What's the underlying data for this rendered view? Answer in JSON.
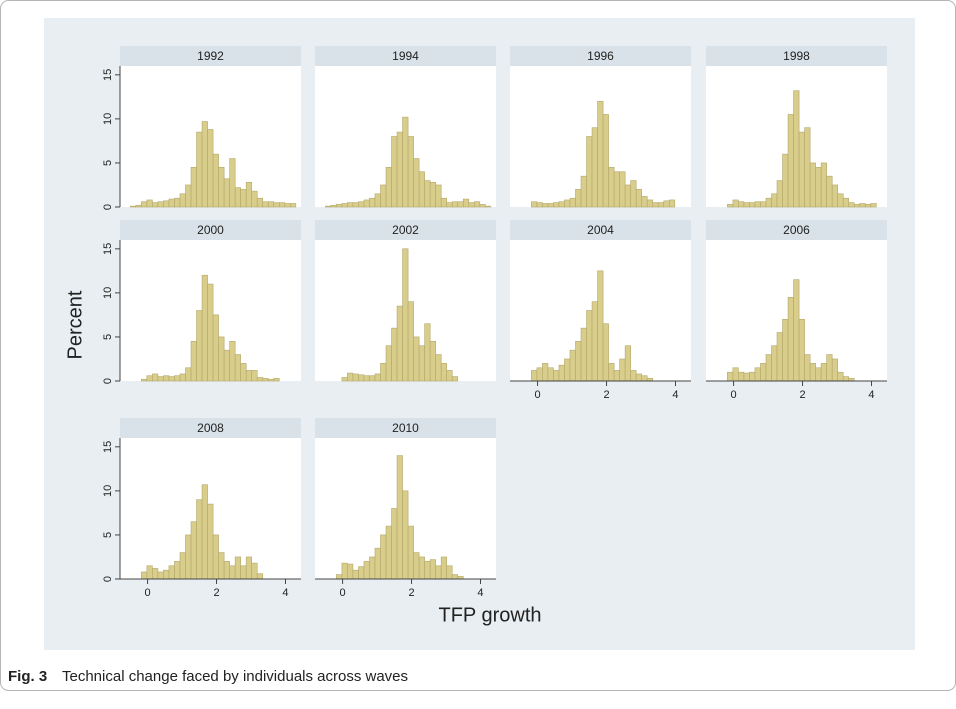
{
  "y_label": "Percent",
  "x_label": "TFP growth",
  "caption_label": "Fig. 3",
  "caption_text": "Technical change faced by individuals across waves",
  "chart_data": [
    {
      "type": "histogram",
      "title": "1992",
      "color": "#d9cd8c",
      "xlim": [
        -0.8,
        4.45
      ],
      "ylim": [
        0,
        16
      ],
      "yticks": [
        0,
        5,
        10,
        15
      ],
      "bins": [
        -0.5,
        -0.34,
        -0.18,
        -0.02,
        0.14,
        0.3,
        0.46,
        0.62,
        0.78,
        0.94,
        1.1,
        1.26,
        1.42,
        1.58,
        1.74,
        1.9,
        2.06,
        2.22,
        2.38,
        2.54,
        2.7,
        2.86,
        3.02,
        3.18,
        3.34,
        3.5,
        3.66,
        3.82,
        3.98,
        4.14,
        4.3
      ],
      "values": [
        0.1,
        0.2,
        0.6,
        0.8,
        0.5,
        0.6,
        0.7,
        0.9,
        1,
        1.5,
        2.5,
        4.5,
        8.5,
        9.7,
        8.8,
        6,
        4.5,
        3.2,
        5.5,
        2.2,
        2,
        2.8,
        1.8,
        1,
        0.6,
        0.6,
        0.5,
        0.5,
        0.4,
        0.4
      ]
    },
    {
      "type": "histogram",
      "title": "1994",
      "color": "#d9cd8c",
      "xlim": [
        -0.8,
        4.45
      ],
      "ylim": [
        0,
        16
      ],
      "bins": [
        -0.5,
        -0.34,
        -0.18,
        -0.02,
        0.14,
        0.3,
        0.46,
        0.62,
        0.78,
        0.94,
        1.1,
        1.26,
        1.42,
        1.58,
        1.74,
        1.9,
        2.06,
        2.22,
        2.38,
        2.54,
        2.7,
        2.86,
        3.02,
        3.18,
        3.34,
        3.5,
        3.66,
        3.82,
        3.98,
        4.14,
        4.3
      ],
      "values": [
        0.1,
        0.2,
        0.3,
        0.4,
        0.5,
        0.5,
        0.6,
        0.8,
        1,
        1.5,
        2.5,
        4.5,
        8,
        8.5,
        10.2,
        8,
        5.5,
        4,
        3,
        2.8,
        2.5,
        1,
        0.5,
        0.6,
        0.6,
        0.9,
        0.5,
        0.6,
        0.3,
        0.1
      ]
    },
    {
      "type": "histogram",
      "title": "1996",
      "color": "#d9cd8c",
      "xlim": [
        -0.8,
        4.45
      ],
      "ylim": [
        0,
        16
      ],
      "bins": [
        -0.5,
        -0.34,
        -0.18,
        -0.02,
        0.14,
        0.3,
        0.46,
        0.62,
        0.78,
        0.94,
        1.1,
        1.26,
        1.42,
        1.58,
        1.74,
        1.9,
        2.06,
        2.22,
        2.38,
        2.54,
        2.7,
        2.86,
        3.02,
        3.18,
        3.34,
        3.5,
        3.66,
        3.82,
        3.98,
        4.14,
        4.3
      ],
      "values": [
        0,
        0,
        0.6,
        0.5,
        0.4,
        0.4,
        0.5,
        0.6,
        0.8,
        1,
        2,
        3.5,
        8,
        9,
        12,
        10.5,
        4.5,
        4,
        4,
        2.5,
        3,
        2,
        1.2,
        0.8,
        0.5,
        0.5,
        0.7,
        0.8,
        0,
        0
      ]
    },
    {
      "type": "histogram",
      "title": "1998",
      "color": "#d9cd8c",
      "xlim": [
        -0.8,
        4.45
      ],
      "ylim": [
        0,
        16
      ],
      "bins": [
        -0.5,
        -0.34,
        -0.18,
        -0.02,
        0.14,
        0.3,
        0.46,
        0.62,
        0.78,
        0.94,
        1.1,
        1.26,
        1.42,
        1.58,
        1.74,
        1.9,
        2.06,
        2.22,
        2.38,
        2.54,
        2.7,
        2.86,
        3.02,
        3.18,
        3.34,
        3.5,
        3.66,
        3.82,
        3.98,
        4.14,
        4.3
      ],
      "values": [
        0,
        0,
        0.3,
        0.8,
        0.6,
        0.5,
        0.5,
        0.6,
        0.6,
        1,
        1.5,
        3,
        6,
        10.5,
        13.2,
        8.5,
        9,
        5,
        4.5,
        5,
        3.5,
        2.5,
        1.5,
        1,
        0.5,
        0.3,
        0.4,
        0.3,
        0.4,
        0
      ]
    },
    {
      "type": "histogram",
      "title": "2000",
      "color": "#d9cd8c",
      "xlim": [
        -0.8,
        4.45
      ],
      "ylim": [
        0,
        16
      ],
      "yticks": [
        0,
        5,
        10,
        15
      ],
      "bins": [
        -0.5,
        -0.34,
        -0.18,
        -0.02,
        0.14,
        0.3,
        0.46,
        0.62,
        0.78,
        0.94,
        1.1,
        1.26,
        1.42,
        1.58,
        1.74,
        1.9,
        2.06,
        2.22,
        2.38,
        2.54,
        2.7,
        2.86,
        3.02,
        3.18,
        3.34,
        3.5,
        3.66,
        3.82,
        3.98,
        4.14,
        4.3
      ],
      "values": [
        0,
        0,
        0.2,
        0.6,
        0.8,
        0.5,
        0.6,
        0.5,
        0.6,
        0.8,
        1.5,
        4.5,
        8,
        12,
        11,
        7.5,
        5,
        3.5,
        4.5,
        3,
        2,
        1.2,
        1.2,
        0.4,
        0.3,
        0.2,
        0.3,
        0,
        0,
        0
      ]
    },
    {
      "type": "histogram",
      "title": "2002",
      "color": "#d9cd8c",
      "xlim": [
        -0.8,
        4.45
      ],
      "ylim": [
        0,
        16
      ],
      "bins": [
        -0.5,
        -0.34,
        -0.18,
        -0.02,
        0.14,
        0.3,
        0.46,
        0.62,
        0.78,
        0.94,
        1.1,
        1.26,
        1.42,
        1.58,
        1.74,
        1.9,
        2.06,
        2.22,
        2.38,
        2.54,
        2.7,
        2.86,
        3.02,
        3.18,
        3.34,
        3.5,
        3.66,
        3.82,
        3.98,
        4.14,
        4.3
      ],
      "values": [
        0,
        0,
        0,
        0.4,
        0.9,
        0.8,
        0.7,
        0.6,
        0.6,
        0.8,
        2,
        4,
        6,
        8.5,
        15,
        9,
        5,
        4,
        6.5,
        4.5,
        3,
        2,
        1.2,
        0.5,
        0,
        0,
        0,
        0,
        0,
        0
      ]
    },
    {
      "type": "histogram",
      "title": "2004",
      "color": "#d9cd8c",
      "xlim": [
        -0.8,
        4.45
      ],
      "ylim": [
        0,
        16
      ],
      "xticks": [
        0,
        2,
        4
      ],
      "bins": [
        -0.5,
        -0.34,
        -0.18,
        -0.02,
        0.14,
        0.3,
        0.46,
        0.62,
        0.78,
        0.94,
        1.1,
        1.26,
        1.42,
        1.58,
        1.74,
        1.9,
        2.06,
        2.22,
        2.38,
        2.54,
        2.7,
        2.86,
        3.02,
        3.18,
        3.34,
        3.5,
        3.66,
        3.82,
        3.98,
        4.14,
        4.3
      ],
      "values": [
        0,
        0,
        1.2,
        1.5,
        2,
        1.5,
        1.2,
        1.8,
        2.5,
        3.5,
        4.5,
        6,
        8,
        9,
        12.5,
        6.5,
        2,
        1.2,
        2.5,
        4,
        1.2,
        0.8,
        0.6,
        0.3,
        0,
        0,
        0,
        0,
        0,
        0
      ]
    },
    {
      "type": "histogram",
      "title": "2006",
      "color": "#d9cd8c",
      "xlim": [
        -0.8,
        4.45
      ],
      "ylim": [
        0,
        16
      ],
      "xticks": [
        0,
        2,
        4
      ],
      "bins": [
        -0.5,
        -0.34,
        -0.18,
        -0.02,
        0.14,
        0.3,
        0.46,
        0.62,
        0.78,
        0.94,
        1.1,
        1.26,
        1.42,
        1.58,
        1.74,
        1.9,
        2.06,
        2.22,
        2.38,
        2.54,
        2.7,
        2.86,
        3.02,
        3.18,
        3.34,
        3.5,
        3.66,
        3.82,
        3.98,
        4.14,
        4.3
      ],
      "values": [
        0,
        0,
        1,
        1.5,
        1,
        0.9,
        1,
        1.5,
        2,
        3,
        4,
        5.5,
        7,
        9.5,
        11.5,
        7,
        3,
        2,
        1.5,
        2,
        3,
        2.5,
        1,
        0.5,
        0.3,
        0,
        0,
        0,
        0,
        0
      ]
    },
    {
      "type": "histogram",
      "title": "2008",
      "color": "#d9cd8c",
      "xlim": [
        -0.8,
        4.45
      ],
      "ylim": [
        0,
        16
      ],
      "yticks": [
        0,
        5,
        10,
        15
      ],
      "xticks": [
        0,
        2,
        4
      ],
      "bins": [
        -0.5,
        -0.34,
        -0.18,
        -0.02,
        0.14,
        0.3,
        0.46,
        0.62,
        0.78,
        0.94,
        1.1,
        1.26,
        1.42,
        1.58,
        1.74,
        1.9,
        2.06,
        2.22,
        2.38,
        2.54,
        2.7,
        2.86,
        3.02,
        3.18,
        3.34,
        3.5,
        3.66,
        3.82,
        3.98,
        4.14,
        4.3
      ],
      "values": [
        0,
        0,
        0.8,
        1.5,
        1.2,
        0.8,
        1,
        1.5,
        2,
        3,
        5,
        6.5,
        9,
        10.7,
        8.5,
        5,
        3,
        2,
        1.5,
        2.5,
        1.5,
        2.5,
        1.8,
        0.6,
        0,
        0,
        0,
        0,
        0,
        0
      ]
    },
    {
      "type": "histogram",
      "title": "2010",
      "color": "#d9cd8c",
      "xlim": [
        -0.8,
        4.45
      ],
      "ylim": [
        0,
        16
      ],
      "xticks": [
        0,
        2,
        4
      ],
      "bins": [
        -0.5,
        -0.34,
        -0.18,
        -0.02,
        0.14,
        0.3,
        0.46,
        0.62,
        0.78,
        0.94,
        1.1,
        1.26,
        1.42,
        1.58,
        1.74,
        1.9,
        2.06,
        2.22,
        2.38,
        2.54,
        2.7,
        2.86,
        3.02,
        3.18,
        3.34,
        3.5,
        3.66,
        3.82,
        3.98,
        4.14,
        4.3
      ],
      "values": [
        0,
        0,
        0.5,
        1.8,
        1.7,
        1,
        1.4,
        2,
        2.5,
        3.5,
        5,
        6,
        8,
        14,
        10,
        6,
        3,
        2.5,
        2,
        2.2,
        1.5,
        2.5,
        1.5,
        0.5,
        0.3,
        0,
        0,
        0,
        0,
        0
      ]
    }
  ]
}
